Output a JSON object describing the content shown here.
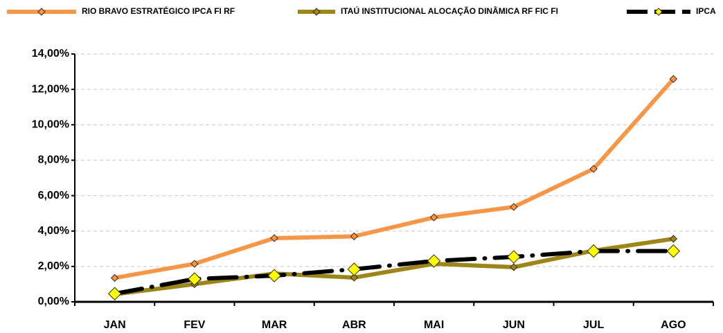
{
  "chart_data": {
    "type": "line",
    "categories": [
      "JAN",
      "FEV",
      "MAR",
      "ABR",
      "MAI",
      "JUN",
      "JUL",
      "AGO"
    ],
    "series": [
      {
        "name": "RIO BRAVO ESTRATÉGICO IPCA FI RF",
        "color": "#F79646",
        "marker_color": "#F79646",
        "values": [
          1.35,
          2.15,
          3.6,
          3.7,
          4.77,
          5.36,
          7.51,
          12.59
        ]
      },
      {
        "name": "ITAÚ INSTITUCIONAL ALOCAÇÃO DINÂMICA RF FIC FI",
        "color": "#9C8519",
        "marker_color": "#9C8519",
        "values": [
          0.43,
          1.0,
          1.6,
          1.37,
          2.15,
          1.96,
          2.89,
          3.56
        ]
      },
      {
        "name": "IPCA",
        "color": "#000000",
        "marker_color": "#FFFF00",
        "dashed": true,
        "values": [
          0.46,
          1.29,
          1.48,
          1.84,
          2.31,
          2.54,
          2.87,
          2.87
        ]
      }
    ],
    "ylim": [
      0,
      14
    ],
    "yticks": [
      {
        "value": 0,
        "label": "0,00%"
      },
      {
        "value": 2,
        "label": "2,00%"
      },
      {
        "value": 4,
        "label": "4,00%"
      },
      {
        "value": 6,
        "label": "6,00%"
      },
      {
        "value": 8,
        "label": "8,00%"
      },
      {
        "value": 10,
        "label": "10,00%"
      },
      {
        "value": 12,
        "label": "12,00%"
      },
      {
        "value": 14,
        "label": "14,00%"
      }
    ],
    "grid": true
  }
}
